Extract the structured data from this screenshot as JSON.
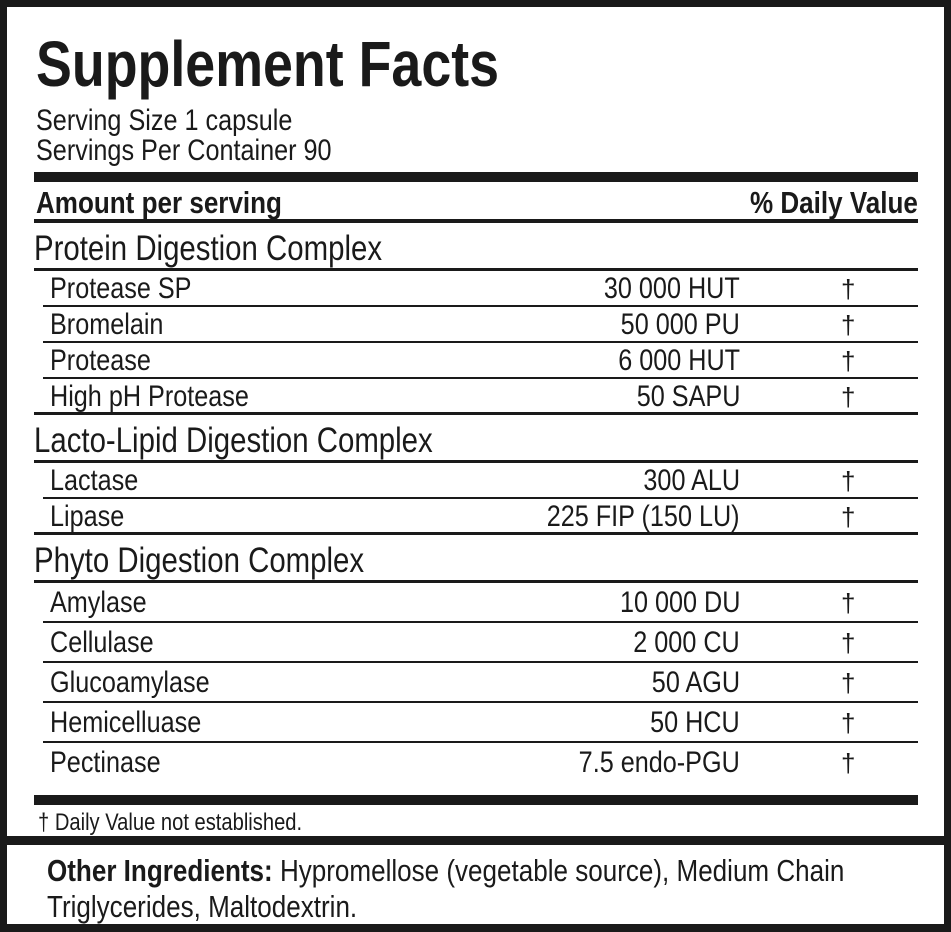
{
  "title": "Supplement Facts",
  "serving_size": "Serving Size 1 capsule",
  "servings_per_container": "Servings Per Container 90",
  "header": {
    "amount": "Amount per serving",
    "daily_value": "% Daily Value"
  },
  "sections": [
    {
      "name": "Protein Digestion Complex",
      "rows": [
        {
          "name": "Protease SP",
          "amount": "30 000 HUT",
          "dv": "†"
        },
        {
          "name": "Bromelain",
          "amount": "50 000 PU",
          "dv": "†"
        },
        {
          "name": "Protease",
          "amount": "6 000 HUT",
          "dv": "†"
        },
        {
          "name": "High pH Protease",
          "amount": "50 SAPU",
          "dv": "†"
        }
      ]
    },
    {
      "name": "Lacto-Lipid Digestion Complex",
      "rows": [
        {
          "name": "Lactase",
          "amount": "300 ALU",
          "dv": "†"
        },
        {
          "name": "Lipase",
          "amount": "225 FIP (150 LU)",
          "dv": "†"
        }
      ]
    },
    {
      "name": "Phyto Digestion Complex",
      "rows": [
        {
          "name": "Amylase",
          "amount": "10 000 DU",
          "dv": "†"
        },
        {
          "name": "Cellulase",
          "amount": "2 000 CU",
          "dv": "†"
        },
        {
          "name": "Glucoamylase",
          "amount": "50 AGU",
          "dv": "†"
        },
        {
          "name": "Hemicelluase",
          "amount": "50 HCU",
          "dv": "†"
        },
        {
          "name": "Pectinase",
          "amount": "7.5 endo-PGU",
          "dv": "†"
        }
      ]
    }
  ],
  "footnote": "† Daily Value not established.",
  "other_ingredients": {
    "label": "Other Ingredients:",
    "line1": " Hypromellose (vegetable source), Medium Chain",
    "line2": "Triglycerides, Maltodextrin."
  }
}
